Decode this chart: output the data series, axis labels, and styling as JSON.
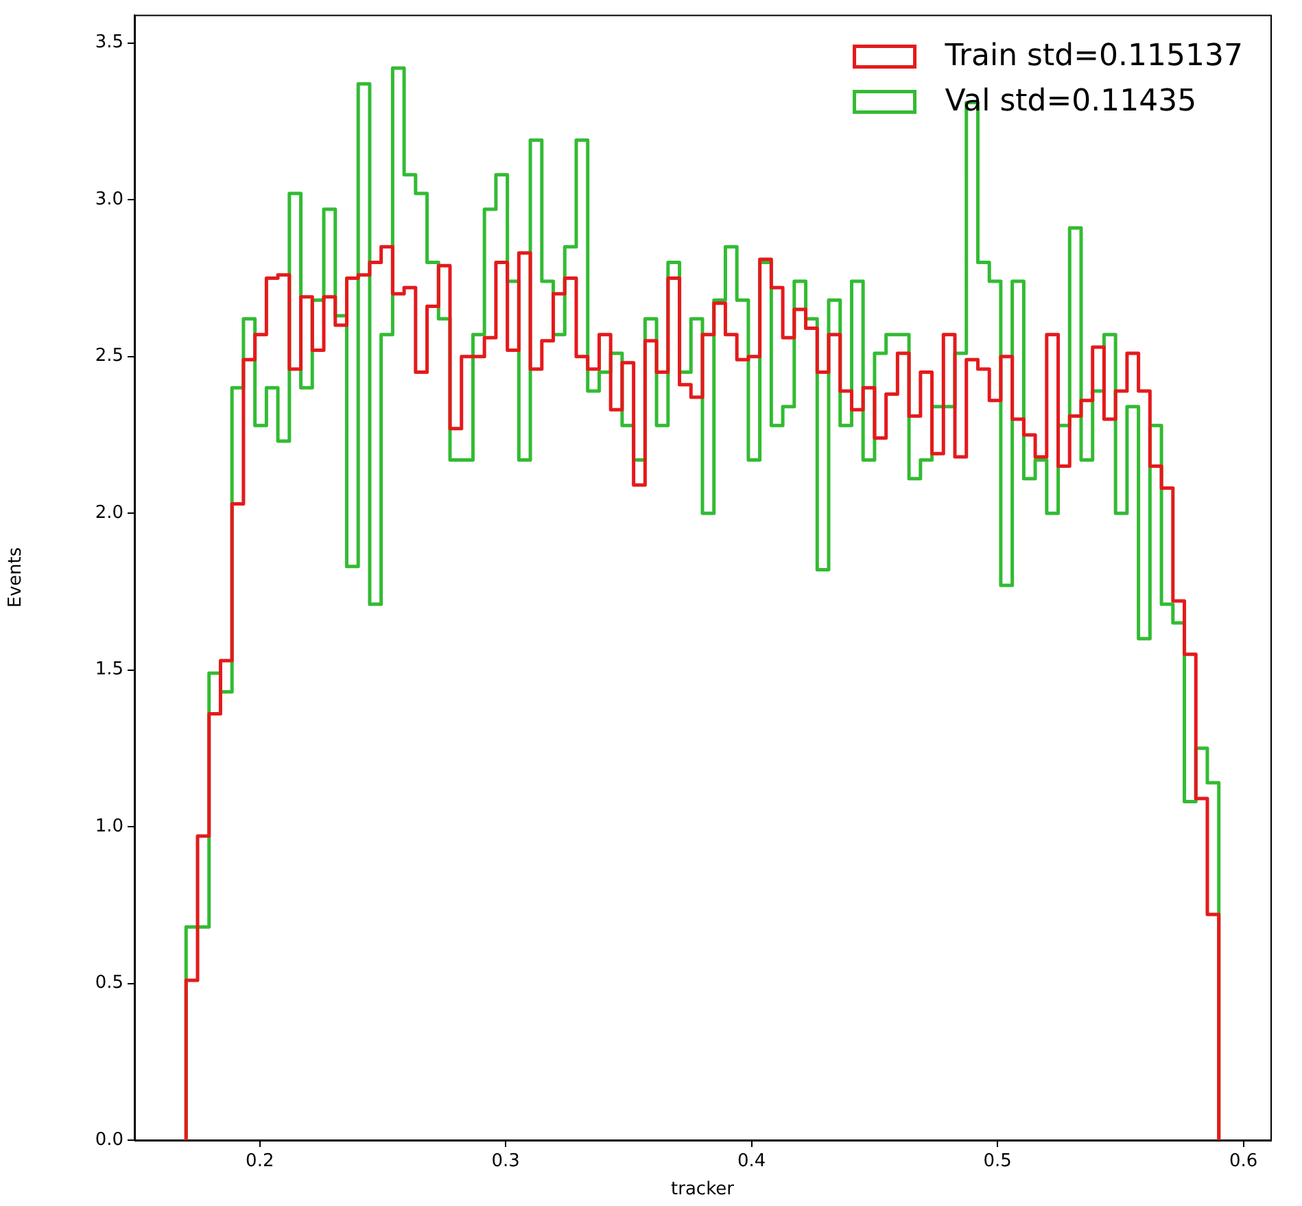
{
  "chart_data": {
    "type": "histogram",
    "xlabel": "tracker",
    "ylabel": "Events",
    "bins": [
      0.17,
      0.17467,
      0.17933,
      0.184,
      0.18867,
      0.19333,
      0.198,
      0.20267,
      0.20733,
      0.212,
      0.21667,
      0.22133,
      0.226,
      0.23067,
      0.23533,
      0.24,
      0.24467,
      0.24933,
      0.254,
      0.25867,
      0.26333,
      0.268,
      0.27267,
      0.27733,
      0.282,
      0.28667,
      0.29133,
      0.296,
      0.30067,
      0.30533,
      0.31,
      0.31467,
      0.31933,
      0.324,
      0.32867,
      0.33333,
      0.338,
      0.34267,
      0.34733,
      0.352,
      0.35667,
      0.36133,
      0.366,
      0.37067,
      0.37533,
      0.38,
      0.38467,
      0.38933,
      0.394,
      0.39867,
      0.40333,
      0.408,
      0.41267,
      0.41733,
      0.422,
      0.42667,
      0.43133,
      0.436,
      0.44067,
      0.44533,
      0.45,
      0.45467,
      0.45933,
      0.464,
      0.46867,
      0.47333,
      0.478,
      0.48267,
      0.48733,
      0.492,
      0.49667,
      0.50133,
      0.506,
      0.51067,
      0.51533,
      0.52,
      0.52467,
      0.52933,
      0.534,
      0.53867,
      0.54333,
      0.548,
      0.55267,
      0.55733,
      0.562,
      0.56667,
      0.57133,
      0.576,
      0.58067,
      0.58533,
      0.59
    ],
    "series": [
      {
        "name": "Train std=0.115137",
        "color": "#e41a1c",
        "values": [
          0.51,
          0.97,
          1.36,
          1.53,
          2.03,
          2.49,
          2.57,
          2.75,
          2.76,
          2.46,
          2.69,
          2.52,
          2.69,
          2.6,
          2.75,
          2.76,
          2.8,
          2.85,
          2.7,
          2.72,
          2.45,
          2.66,
          2.79,
          2.27,
          2.5,
          2.5,
          2.56,
          2.8,
          2.52,
          2.83,
          2.46,
          2.55,
          2.7,
          2.75,
          2.5,
          2.46,
          2.57,
          2.33,
          2.48,
          2.09,
          2.55,
          2.45,
          2.75,
          2.41,
          2.37,
          2.57,
          2.67,
          2.57,
          2.49,
          2.5,
          2.81,
          2.72,
          2.56,
          2.65,
          2.59,
          2.45,
          2.57,
          2.39,
          2.33,
          2.4,
          2.24,
          2.38,
          2.51,
          2.31,
          2.45,
          2.19,
          2.57,
          2.18,
          2.49,
          2.46,
          2.36,
          2.5,
          2.3,
          2.25,
          2.18,
          2.57,
          2.15,
          2.31,
          2.36,
          2.53,
          2.3,
          2.39,
          2.51,
          2.39,
          2.15,
          2.08,
          1.72,
          1.55,
          1.09,
          0.72
        ]
      },
      {
        "name": "Val std=0.11435",
        "color": "#33bb33",
        "values": [
          0.68,
          0.68,
          1.49,
          1.43,
          2.4,
          2.62,
          2.28,
          2.4,
          2.23,
          3.02,
          2.4,
          2.68,
          2.97,
          2.63,
          1.83,
          3.37,
          1.71,
          2.57,
          3.42,
          3.08,
          3.02,
          2.8,
          2.62,
          2.17,
          2.17,
          2.57,
          2.97,
          3.08,
          2.74,
          2.17,
          3.19,
          2.74,
          2.57,
          2.85,
          3.19,
          2.39,
          2.45,
          2.51,
          2.28,
          2.17,
          2.62,
          2.28,
          2.8,
          2.45,
          2.62,
          2.0,
          2.68,
          2.85,
          2.68,
          2.17,
          2.8,
          2.28,
          2.34,
          2.74,
          2.62,
          1.82,
          2.68,
          2.28,
          2.74,
          2.17,
          2.51,
          2.57,
          2.57,
          2.11,
          2.17,
          2.34,
          2.34,
          2.51,
          3.31,
          2.8,
          2.74,
          1.77,
          2.74,
          2.11,
          2.17,
          2.0,
          2.28,
          2.91,
          2.17,
          2.39,
          2.57,
          2.0,
          2.34,
          1.6,
          2.28,
          1.71,
          1.65,
          1.08,
          1.25,
          1.14
        ]
      }
    ],
    "xlim": [
      0.149,
      0.611
    ],
    "xticks": [
      0.2,
      0.3,
      0.4,
      0.5,
      0.6
    ],
    "ylim": [
      0,
      3.59
    ],
    "yticks": [
      {
        "value": 0,
        "label": "0.0"
      },
      0.5,
      {
        "value": 1,
        "label": "1.0"
      },
      1.5,
      {
        "value": 2,
        "label": "2.0"
      },
      2.5,
      {
        "value": 3,
        "label": "3.0"
      },
      3.5
    ],
    "grid": false,
    "legend": "top right"
  }
}
